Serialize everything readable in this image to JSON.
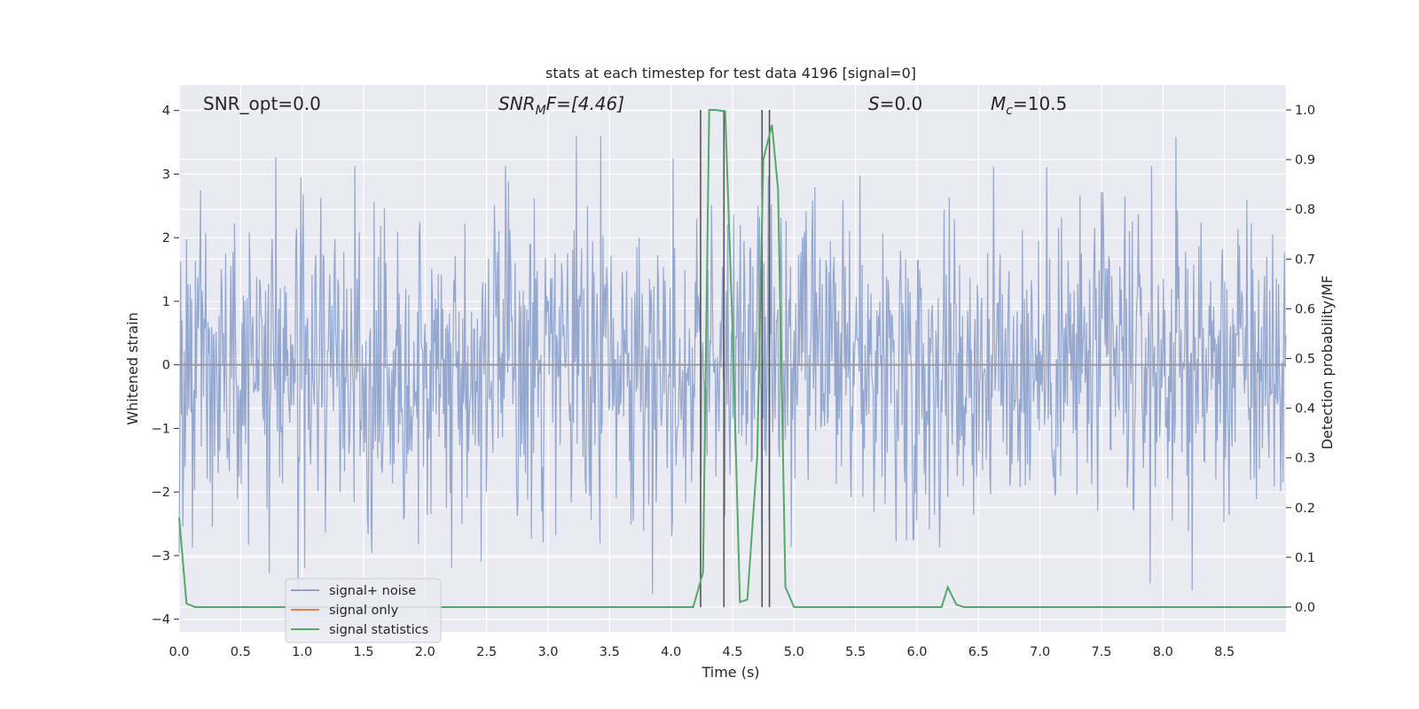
{
  "chart_data": {
    "type": "line",
    "title": "stats at each timestep for test data 4196 [signal=0]",
    "xlabel": "Time (s)",
    "ylabel_left": "Whitened strain",
    "ylabel_right": "Detection probability/MF",
    "xlim": [
      0.0,
      9.0
    ],
    "ylim_left": [
      -4.2,
      4.4
    ],
    "ylim_right": [
      -0.05,
      1.05
    ],
    "x_ticks": [
      "0.0",
      "0.5",
      "1.0",
      "1.5",
      "2.0",
      "2.5",
      "3.0",
      "3.5",
      "4.0",
      "4.5",
      "5.0",
      "5.5",
      "6.0",
      "6.5",
      "7.0",
      "7.5",
      "8.0",
      "8.5"
    ],
    "y_left_ticks": [
      "4",
      "3",
      "2",
      "1",
      "0",
      "−1",
      "−2",
      "−3",
      "−4"
    ],
    "y_right_ticks": [
      "1.0",
      "0.9",
      "0.8",
      "0.7",
      "0.6",
      "0.5",
      "0.4",
      "0.3",
      "0.2",
      "0.1",
      "0.0"
    ],
    "grid": true,
    "annotations": {
      "snr_opt": "SNR_opt=0.0",
      "snr_mf_main": "SNR",
      "snr_mf_sub": "M",
      "snr_mf_rest": "F=[4.46]",
      "s_main": "S",
      "s_rest": "=0.0",
      "mc_main": "M",
      "mc_sub": "c",
      "mc_rest": "=10.5"
    },
    "legend": {
      "placement": "lower-left",
      "entries": [
        "signal+ noise",
        "signal only",
        "signal statistics"
      ]
    },
    "colors": {
      "signal_noise": "#8fa3cc",
      "signal_only": "#dd8452",
      "signal_statistics": "#55a868",
      "marker_lines": "#555555",
      "background": "#eaeaf2"
    },
    "series": [
      {
        "name": "signal+ noise",
        "kind": "noise",
        "envelope_upper_typical": 2.3,
        "envelope_lower_typical": -2.2,
        "max_peak": 3.6,
        "min_trough": -3.6
      },
      {
        "name": "signal only",
        "values_constant": 0.0
      },
      {
        "name": "signal statistics",
        "x": [
          0.0,
          0.06,
          0.13,
          4.18,
          4.26,
          4.31,
          4.36,
          4.44,
          4.5,
          4.56,
          4.62,
          4.7,
          4.75,
          4.82,
          4.87,
          4.93,
          5.0,
          6.2,
          6.25,
          6.32,
          6.38,
          9.0
        ],
        "y": [
          0.18,
          0.007,
          0.0,
          0.0,
          0.07,
          1.0,
          1.0,
          0.997,
          0.56,
          0.01,
          0.015,
          0.3,
          0.9,
          0.97,
          0.84,
          0.04,
          0.0,
          0.0,
          0.04,
          0.005,
          0.0,
          0.0
        ]
      }
    ],
    "vertical_markers_x": [
      4.24,
      4.43,
      4.74,
      4.8
    ]
  }
}
